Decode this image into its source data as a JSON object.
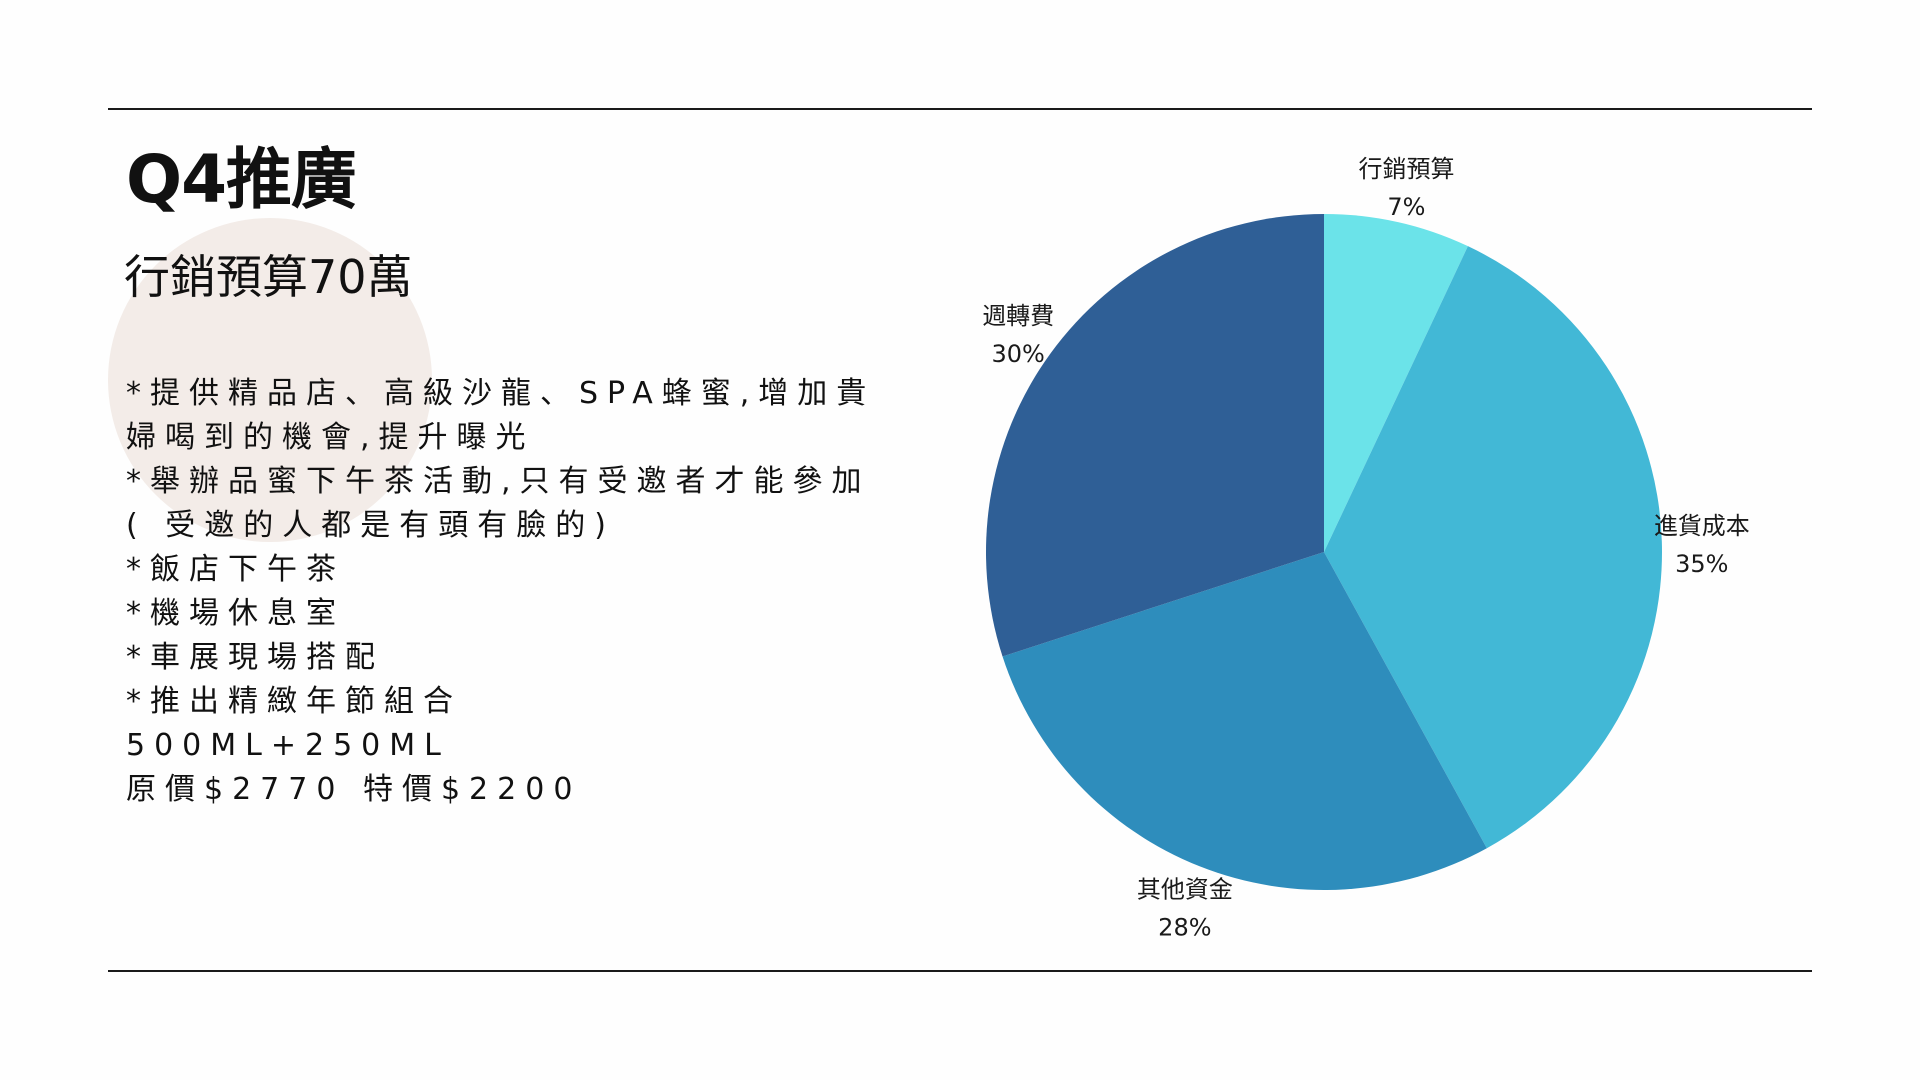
{
  "slide": {
    "title": "Q4推廣",
    "subtitle": "行銷預算70萬",
    "body_lines": [
      "*提供精品店、高級沙龍、SPA蜂蜜,增加貴",
      "婦喝到的機會,提升曝光",
      "*舉辦品蜜下午茶活動,只有受邀者才能參加",
      "( 受邀的人都是有頭有臉的)",
      "*飯店下午茶",
      "*機場休息室",
      "*車展現場搭配",
      "*推出精緻年節組合",
      "500ML+250ML",
      "原價$2770 特價$2200"
    ]
  },
  "colors": {
    "background": "#fefefe",
    "rule": "#1a1a1a",
    "decor_circle": "#f3ece8"
  },
  "chart_data": {
    "type": "pie",
    "title": "",
    "start_angle_deg": 0,
    "direction": "clockwise",
    "slices": [
      {
        "label": "行銷預算",
        "value": 7,
        "value_label": "7%",
        "color": "#6be3e9"
      },
      {
        "label": "進貨成本",
        "value": 35,
        "value_label": "35%",
        "color": "#42b8d6"
      },
      {
        "label": "其他資金",
        "value": 28,
        "value_label": "28%",
        "color": "#2e8dbc"
      },
      {
        "label": "週轉費",
        "value": 30,
        "value_label": "30%",
        "color": "#2f5f96"
      }
    ]
  }
}
